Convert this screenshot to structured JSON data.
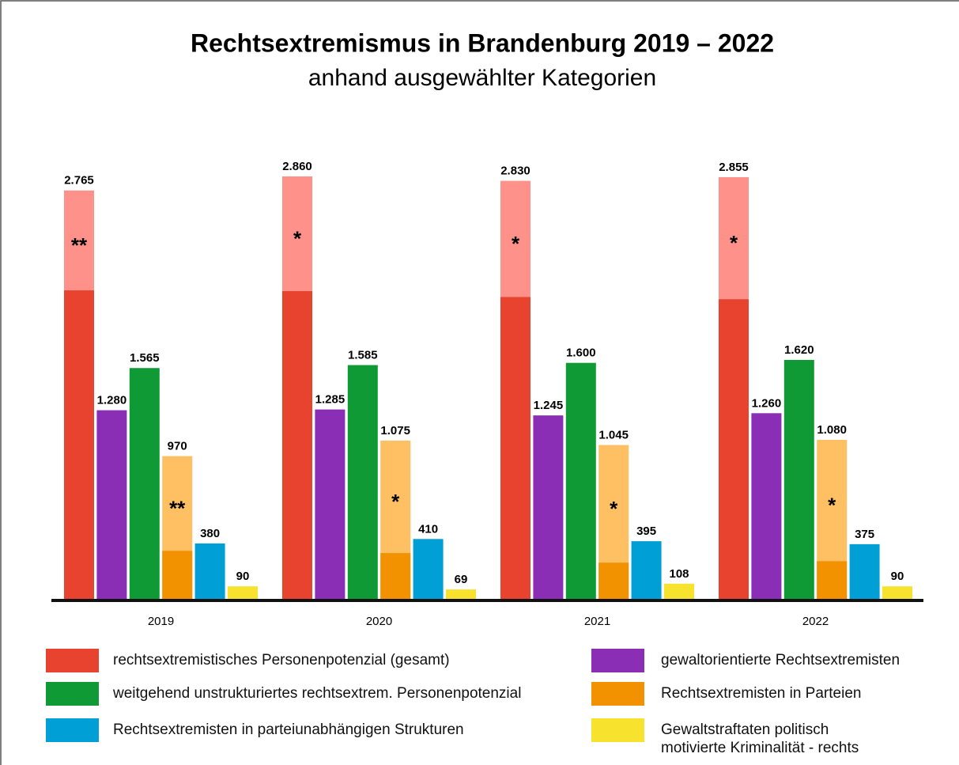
{
  "chart_data": {
    "type": "bar",
    "title": "Rechtsextremismus in Brandenburg 2019 – 2022",
    "subtitle": "anhand ausgewählter Kategorien",
    "categories": [
      "2019",
      "2020",
      "2021",
      "2022"
    ],
    "series": [
      {
        "name": "rechtsextremistisches Personenpotenzial (gesamt)",
        "color": "#e8432f",
        "light_color": "#fe918a",
        "values": [
          2765,
          2860,
          2830,
          2855
        ],
        "value_labels": [
          "2.765",
          "2.860",
          "2.830",
          "2.855"
        ],
        "inner_values": [
          2090,
          2085,
          2045,
          2030
        ],
        "markers": [
          "**",
          "*",
          "*",
          "*"
        ]
      },
      {
        "name": "gewaltorientierte Rechtsextremisten",
        "color": "#8a2fb5",
        "values": [
          1280,
          1285,
          1245,
          1260
        ],
        "value_labels": [
          "1.280",
          "1.285",
          "1.245",
          "1.260"
        ]
      },
      {
        "name": "weitgehend unstrukturiertes rechtsextrem. Personenpotenzial",
        "color": "#0f9a35",
        "values": [
          1565,
          1585,
          1600,
          1620
        ],
        "value_labels": [
          "1.565",
          "1.585",
          "1.600",
          "1.620"
        ]
      },
      {
        "name": "Rechtsextremisten in Parteien",
        "color": "#f39200",
        "light_color": "#fec063",
        "values": [
          970,
          1075,
          1045,
          1080
        ],
        "value_labels": [
          "970",
          "1.075",
          "1.045",
          "1.080"
        ],
        "inner_values": [
          330,
          315,
          250,
          260
        ],
        "markers": [
          "**",
          "*",
          "*",
          "*"
        ]
      },
      {
        "name": "Rechtsextremisten in parteiunabhängigen Strukturen",
        "color": "#009fd6",
        "values": [
          380,
          410,
          395,
          375
        ]
      },
      {
        "name": "Gewaltstraftaten politisch\nmotivierte Kriminalität - rechts",
        "color": "#f7e22e",
        "values": [
          90,
          69,
          108,
          90
        ]
      }
    ]
  }
}
